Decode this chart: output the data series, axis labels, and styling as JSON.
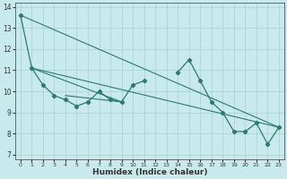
{
  "xlabel": "Humidex (Indice chaleur)",
  "bg_color": "#c8eaec",
  "line_color": "#2d7873",
  "grid_color": "#a8cfd4",
  "xlim": [
    -0.5,
    23.5
  ],
  "ylim": [
    6.8,
    14.2
  ],
  "xticks": [
    0,
    1,
    2,
    3,
    4,
    5,
    6,
    7,
    8,
    9,
    10,
    11,
    12,
    13,
    14,
    15,
    16,
    17,
    18,
    19,
    20,
    21,
    22,
    23
  ],
  "yticks": [
    7,
    8,
    9,
    10,
    11,
    12,
    13,
    14
  ],
  "main_series": [
    13.6,
    11.1,
    10.3,
    9.8,
    9.6,
    9.3,
    9.5,
    10.0,
    9.6,
    9.5,
    10.3,
    10.5,
    null,
    null,
    10.9,
    11.5,
    10.5,
    9.5,
    9.0,
    8.1,
    8.1,
    8.5,
    7.5,
    8.3
  ],
  "trend_lines": [
    {
      "x": [
        0,
        23
      ],
      "y": [
        13.6,
        8.3
      ]
    },
    {
      "x": [
        1,
        23
      ],
      "y": [
        11.1,
        8.3
      ]
    },
    {
      "x": [
        1,
        9
      ],
      "y": [
        11.1,
        9.5
      ]
    },
    {
      "x": [
        4,
        9
      ],
      "y": [
        9.8,
        9.5
      ]
    }
  ]
}
